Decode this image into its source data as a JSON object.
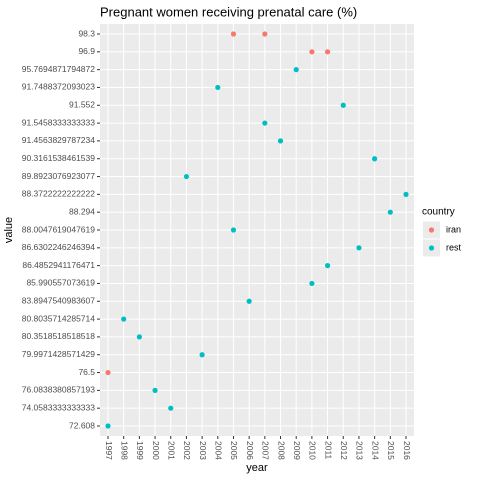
{
  "chart_data": {
    "type": "scatter",
    "title": "Pregnant women receiving prenatal care (%)",
    "x_label": "year",
    "y_label": "value",
    "xticks": [
      1997,
      1998,
      1999,
      2000,
      2001,
      2002,
      2003,
      2004,
      2005,
      2006,
      2007,
      2008,
      2009,
      2010,
      2011,
      2012,
      2013,
      2014,
      2015,
      2016
    ],
    "yticks": [
      72.608,
      74.0583333333333,
      76.0838380857193,
      76.5,
      79.9971428571429,
      80.3518518518518,
      80.8035714285714,
      83.8947540983607,
      85.990557073619,
      86.4852941176471,
      86.6302246246394,
      88.0047619047619,
      88.294,
      88.3722222222222,
      89.8923076923077,
      90.3161538461539,
      91.4563829787234,
      91.5458333333333,
      91.552,
      91.7488372093023,
      95.7694871794872,
      96.9,
      98.3
    ],
    "grid": true,
    "legend_title": "country",
    "series": [
      {
        "name": "iran",
        "color": "#F8766D",
        "x": [
          1997,
          2005,
          2007,
          2010,
          2011
        ],
        "values": [
          76.5,
          98.3,
          98.3,
          96.9,
          96.9
        ]
      },
      {
        "name": "rest",
        "color": "#00BFC4",
        "x": [
          1997,
          1998,
          1999,
          2000,
          2001,
          2002,
          2003,
          2004,
          2005,
          2006,
          2007,
          2008,
          2009,
          2010,
          2011,
          2012,
          2013,
          2014,
          2015,
          2016
        ],
        "values": [
          72.608,
          80.8035714285714,
          80.3518518518518,
          76.0838380857193,
          74.0583333333333,
          89.8923076923077,
          79.9971428571429,
          91.7488372093023,
          88.0047619047619,
          83.8947540983607,
          91.5458333333333,
          91.4563829787234,
          95.7694871794872,
          85.990557073619,
          86.4852941176471,
          91.552,
          86.6302246246394,
          90.3161538461539,
          88.294,
          88.3722222222222
        ]
      }
    ]
  }
}
